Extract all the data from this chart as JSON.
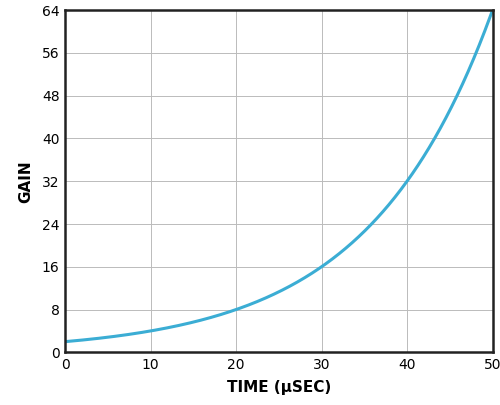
{
  "title": "",
  "xlabel": "TIME (μSEC)",
  "ylabel": "GAIN",
  "xlim": [
    0,
    50
  ],
  "ylim": [
    0,
    64
  ],
  "xticks": [
    0,
    10,
    20,
    30,
    40,
    50
  ],
  "yticks": [
    0,
    8,
    16,
    24,
    32,
    40,
    48,
    56,
    64
  ],
  "line_color": "#3BADD4",
  "line_width": 2.2,
  "curve_A": 2.0,
  "curve_k": 0.06931,
  "grid_color": "#bbbbbb",
  "grid_linewidth": 0.7,
  "background_color": "#ffffff",
  "xlabel_fontsize": 11,
  "ylabel_fontsize": 11,
  "tick_fontsize": 10,
  "xlabel_fontweight": "bold",
  "ylabel_fontweight": "bold",
  "spine_color": "#222222",
  "spine_linewidth": 1.8
}
